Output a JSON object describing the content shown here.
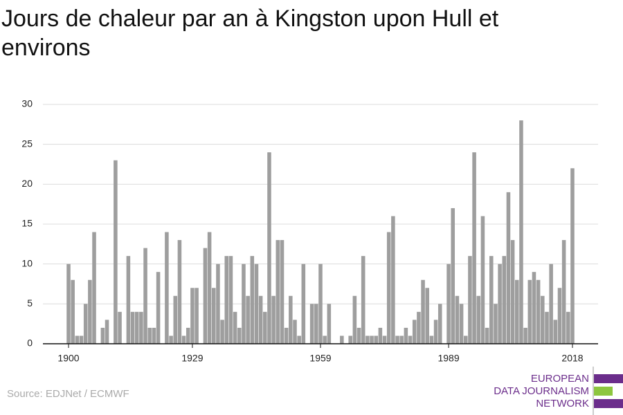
{
  "chart_data": {
    "type": "bar",
    "title": "Jours de chaleur par an à Kingston upon Hull et environs",
    "source": "Source: EDJNet / ECMWF",
    "logo": [
      "EUROPEAN",
      "DATA JOURNALISM",
      "NETWORK"
    ],
    "color": "#9e9e9e",
    "x": [
      1900,
      1901,
      1902,
      1903,
      1904,
      1905,
      1906,
      1907,
      1908,
      1909,
      1910,
      1911,
      1912,
      1913,
      1914,
      1915,
      1916,
      1917,
      1918,
      1919,
      1920,
      1921,
      1922,
      1923,
      1924,
      1925,
      1926,
      1927,
      1928,
      1929,
      1930,
      1931,
      1932,
      1933,
      1934,
      1935,
      1936,
      1937,
      1938,
      1939,
      1940,
      1941,
      1942,
      1943,
      1944,
      1945,
      1946,
      1947,
      1948,
      1949,
      1950,
      1951,
      1952,
      1953,
      1954,
      1955,
      1956,
      1957,
      1958,
      1959,
      1960,
      1961,
      1962,
      1963,
      1964,
      1965,
      1966,
      1967,
      1968,
      1969,
      1970,
      1971,
      1972,
      1973,
      1974,
      1975,
      1976,
      1977,
      1978,
      1979,
      1980,
      1981,
      1982,
      1983,
      1984,
      1985,
      1986,
      1987,
      1988,
      1989,
      1990,
      1991,
      1992,
      1993,
      1994,
      1995,
      1996,
      1997,
      1998,
      1999,
      2000,
      2001,
      2002,
      2003,
      2004,
      2005,
      2006,
      2007,
      2008,
      2009,
      2010,
      2011,
      2012,
      2013,
      2014,
      2015,
      2016,
      2017,
      2018
    ],
    "values": [
      10,
      8,
      1,
      1,
      5,
      8,
      14,
      0,
      2,
      3,
      0,
      23,
      4,
      0,
      11,
      4,
      4,
      4,
      12,
      2,
      2,
      9,
      0,
      14,
      1,
      6,
      13,
      1,
      2,
      7,
      7,
      0,
      12,
      14,
      7,
      10,
      3,
      11,
      11,
      4,
      2,
      10,
      6,
      11,
      10,
      6,
      4,
      24,
      6,
      13,
      13,
      2,
      6,
      3,
      1,
      10,
      0,
      5,
      5,
      10,
      1,
      5,
      0,
      0,
      1,
      0,
      1,
      6,
      2,
      11,
      1,
      1,
      1,
      2,
      1,
      14,
      16,
      1,
      1,
      2,
      1,
      3,
      4,
      8,
      7,
      1,
      3,
      5,
      0,
      10,
      17,
      6,
      5,
      1,
      11,
      24,
      6,
      16,
      2,
      11,
      5,
      10,
      11,
      19,
      13,
      8,
      28,
      2,
      8,
      9,
      8,
      6,
      4,
      10,
      3,
      7,
      13,
      4,
      22
    ],
    "xlim": [
      1894,
      2024
    ],
    "xticks": [
      1900,
      1929,
      1959,
      1989,
      2018
    ],
    "ylim": [
      0,
      30
    ],
    "yticks": [
      0,
      5,
      10,
      15,
      20,
      25,
      30
    ],
    "grid": true
  }
}
